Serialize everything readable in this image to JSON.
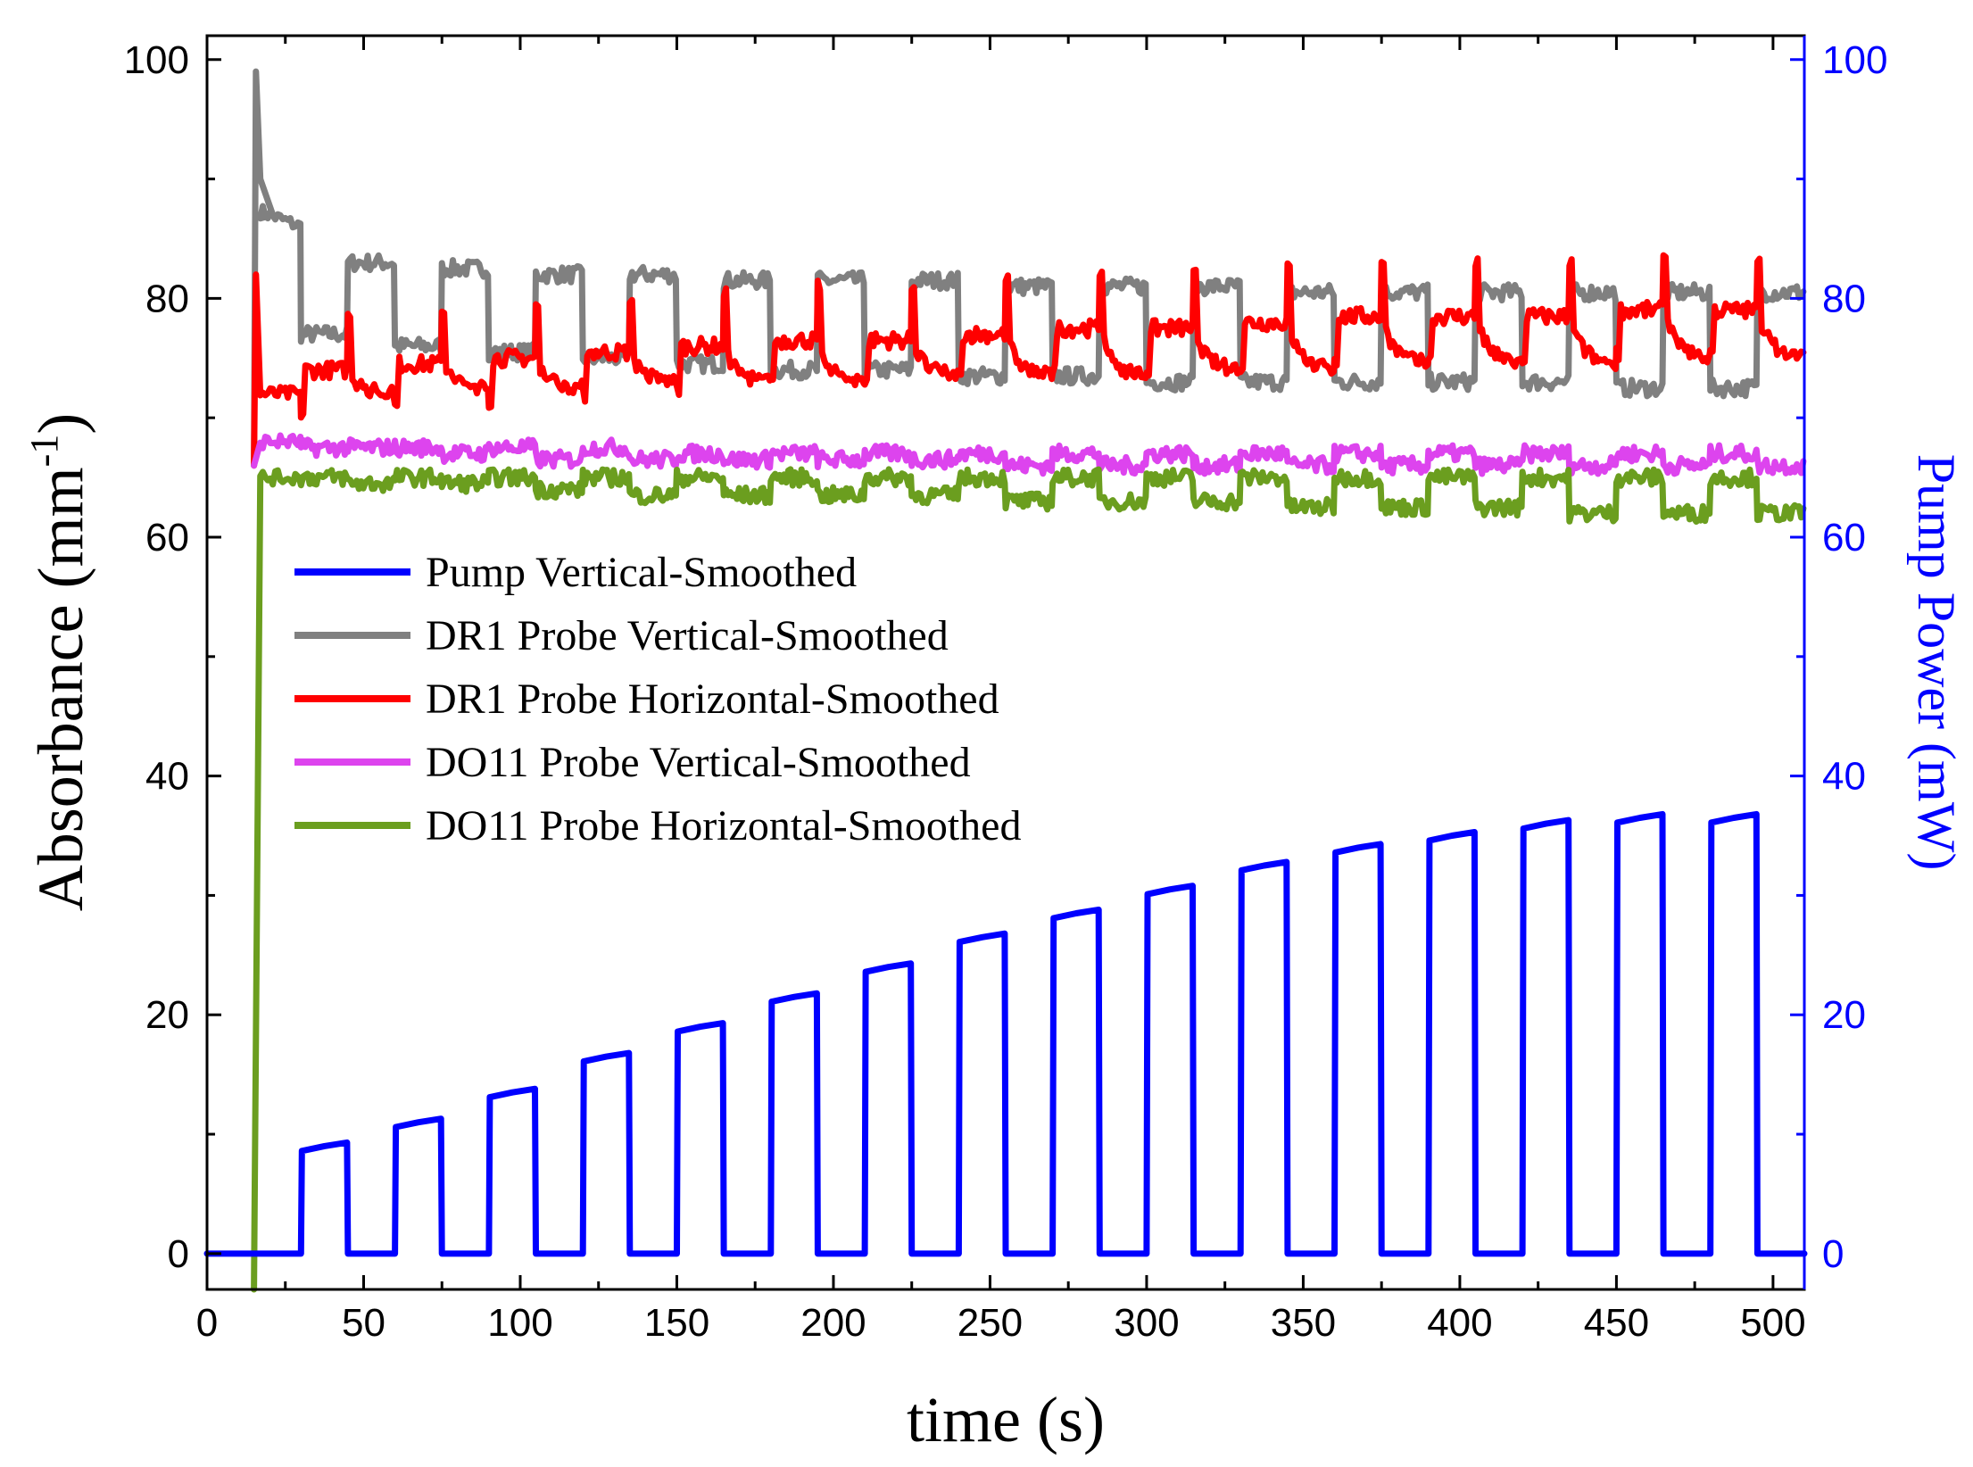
{
  "chart_data": {
    "type": "line",
    "xlabel": "time (s)",
    "ylabel_text": "Absorbance (mm",
    "ylabel_sup": "-1",
    "ylabel_close": ")",
    "y2label": "Pump Power (mW)",
    "xlim": [
      0,
      510
    ],
    "ylim": [
      -3,
      102
    ],
    "y2lim": [
      -3,
      102
    ],
    "xticks": [
      0,
      50,
      100,
      150,
      200,
      250,
      300,
      350,
      400,
      450,
      500
    ],
    "xtick_labels": [
      "0",
      "50",
      "100",
      "150",
      "200",
      "250",
      "300",
      "350",
      "400",
      "450",
      "500"
    ],
    "yticks": [
      0,
      20,
      40,
      60,
      80,
      100
    ],
    "ytick_labels": [
      "0",
      "20",
      "40",
      "60",
      "80",
      "100"
    ],
    "y2ticks": [
      0,
      20,
      40,
      60,
      80,
      100
    ],
    "y2tick_labels": [
      "0",
      "20",
      "40",
      "60",
      "80",
      "100"
    ],
    "legend_position": "center-left",
    "pump_start": 15,
    "pump_period": 30,
    "pump_on_duration": 15,
    "series": [
      {
        "name": "Pump Vertical-Smoothed",
        "color": "#0000ff",
        "axis": "right",
        "pulse_values": [
          9,
          11,
          13.5,
          16.5,
          19,
          21.5,
          24,
          26.5,
          28.5,
          30.5,
          32.5,
          34,
          35,
          36,
          36.5,
          36.5
        ]
      },
      {
        "name": "DR1 Probe Vertical-Smoothed",
        "color": "#808080",
        "axis": "left",
        "pulse_values": [
          77,
          76,
          75.5,
          75,
          74.5,
          74,
          74,
          73.5,
          73.5,
          73,
          73,
          73,
          73,
          73,
          72.5,
          72.5
        ],
        "rest_values": [
          86,
          83,
          82.5,
          82,
          82,
          81.5,
          81.5,
          81.5,
          81,
          81,
          81,
          80.5,
          80.5,
          80.5,
          80.5,
          80.5
        ]
      },
      {
        "name": "DR1 Probe Horizontal-Smoothed",
        "color": "#ff0000",
        "axis": "left",
        "pulse_values": [
          74,
          74.5,
          75,
          75.5,
          76,
          76.5,
          76.5,
          77,
          77.5,
          77.5,
          78,
          78.5,
          78.5,
          78.5,
          79,
          79
        ],
        "rest_values": [
          72,
          72,
          72.5,
          72.5,
          73,
          73,
          73,
          73.5,
          73.5,
          73.5,
          74,
          74,
          74.5,
          74.5,
          74.5,
          75
        ],
        "start_spike": 82,
        "overshoot": 4.5
      },
      {
        "name": "DO11 Probe Vertical-Smoothed",
        "color": "#dd44ee",
        "axis": "left",
        "pulse_values": [
          67.5,
          67.5,
          67.5,
          67.5,
          67,
          67,
          67,
          67,
          67,
          67,
          67,
          67,
          67,
          67,
          67,
          67
        ],
        "rest_values": [
          68,
          67.5,
          67,
          66.5,
          66.5,
          66.5,
          66.5,
          66.5,
          66,
          66,
          66,
          66,
          66,
          66,
          66,
          66
        ]
      },
      {
        "name": "DO11 Probe Horizontal-Smoothed",
        "color": "#6b9e1f",
        "axis": "left",
        "pulse_values": [
          65,
          65,
          65,
          65,
          65,
          65,
          65,
          65,
          65,
          65,
          65,
          65,
          65,
          65,
          65,
          65
        ],
        "rest_values": [
          65,
          64.5,
          64.5,
          64,
          63.5,
          63.5,
          63.5,
          63.5,
          63,
          63,
          63,
          62.5,
          62.5,
          62.5,
          62,
          62
        ],
        "start_drop": -3
      }
    ]
  }
}
